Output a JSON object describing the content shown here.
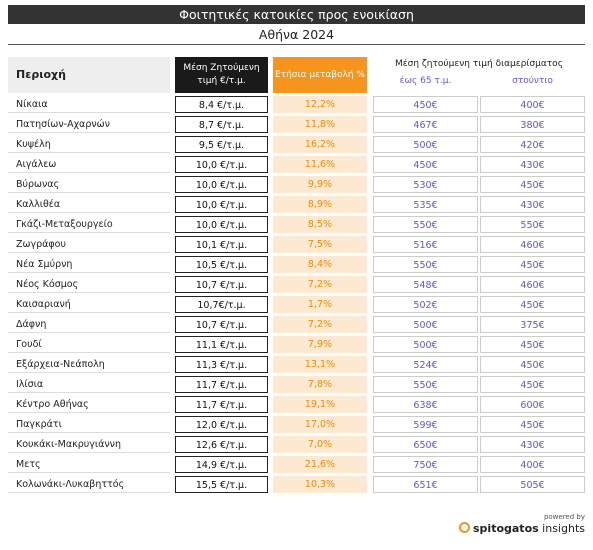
{
  "header": {
    "title": "Φοιτητικές κατοικίες προς ενοικίαση",
    "subtitle": "Αθήνα 2024"
  },
  "table": {
    "columns": [
      "Περιοχή",
      "Μέση Ζητούμενη τιμή €/τ.μ.",
      "Ετήσια μεταβολή %"
    ],
    "group_header": "Μέση ζητούμενη τιμή διαμερίσματος",
    "subcolumns": [
      "έως 65 τ.μ.",
      "στούντιο"
    ],
    "rows": [
      [
        "Νίκαια",
        "8,4 €/τ.μ.",
        "12,2%",
        "450€",
        "400€"
      ],
      [
        "Πατησίων-Αχαρνών",
        "8,7 €/τ.μ.",
        "11,8%",
        "467€",
        "380€"
      ],
      [
        "Κυψέλη",
        "9,5 €/τ.μ.",
        "16,2%",
        "500€",
        "420€"
      ],
      [
        "Αιγάλεω",
        "10,0 €/τ.μ.",
        "11,6%",
        "450€",
        "430€"
      ],
      [
        "Βύρωνας",
        "10,0 €/τ.μ.",
        "9,9%",
        "530€",
        "450€"
      ],
      [
        "Καλλιθέα",
        "10,0 €/τ.μ.",
        "8,9%",
        "535€",
        "430€"
      ],
      [
        "Γκάζι-Μεταξουργείο",
        "10,0 €/τ.μ.",
        "8,5%",
        "550€",
        "550€"
      ],
      [
        "Ζωγράφου",
        "10,1 €/τ.μ.",
        "7,5%",
        "516€",
        "460€"
      ],
      [
        "Νέα Σμύρνη",
        "10,5 €/τ.μ.",
        "8,4%",
        "550€",
        "450€"
      ],
      [
        "Νέος Κόσμος",
        "10,7 €/τ.μ.",
        "7,2%",
        "548€",
        "460€"
      ],
      [
        "Καισαριανή",
        "10,7€/τ.μ.",
        "1,7%",
        "502€",
        "450€"
      ],
      [
        "Δάφνη",
        "10,7 €/τ.μ.",
        "7,2%",
        "500€",
        "375€"
      ],
      [
        "Γουδί",
        "11,1 €/τ.μ.",
        "7,9%",
        "500€",
        "450€"
      ],
      [
        "Εξάρχεια-Νεάπολη",
        "11,3 €/τ.μ.",
        "13,1%",
        "524€",
        "450€"
      ],
      [
        "Ιλίσια",
        "11,7 €/τ.μ.",
        "7,8%",
        "550€",
        "450€"
      ],
      [
        "Κέντρο Αθήνας",
        "11,7 €/τ.μ.",
        "19,1%",
        "638€",
        "600€"
      ],
      [
        "Παγκράτι",
        "12,0 €/τ.μ.",
        "17,0%",
        "599€",
        "450€"
      ],
      [
        "Κουκάκι-Μακρυγιάννη",
        "12,6 €/τ.μ.",
        "7,0%",
        "650€",
        "430€"
      ],
      [
        "Μετς",
        "14,9 €/τ.μ.",
        "21,6%",
        "750€",
        "400€"
      ],
      [
        "Κολωνάκι-Λυκαβηττός",
        "15,5 €/τ.μ.",
        "10,3%",
        "651€",
        "505€"
      ]
    ]
  },
  "footer": {
    "powered_by": "powered by",
    "brand": "spitogatos",
    "product": "insights"
  }
}
